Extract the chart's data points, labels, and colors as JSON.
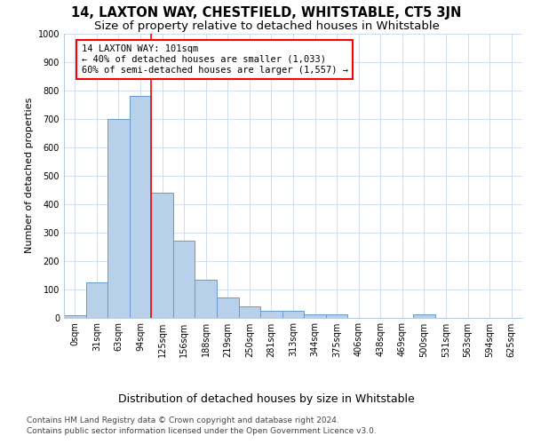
{
  "title": "14, LAXTON WAY, CHESTFIELD, WHITSTABLE, CT5 3JN",
  "subtitle": "Size of property relative to detached houses in Whitstable",
  "xlabel": "Distribution of detached houses by size in Whitstable",
  "ylabel": "Number of detached properties",
  "categories": [
    "0sqm",
    "31sqm",
    "63sqm",
    "94sqm",
    "125sqm",
    "156sqm",
    "188sqm",
    "219sqm",
    "250sqm",
    "281sqm",
    "313sqm",
    "344sqm",
    "375sqm",
    "406sqm",
    "438sqm",
    "469sqm",
    "500sqm",
    "531sqm",
    "563sqm",
    "594sqm",
    "625sqm"
  ],
  "values": [
    8,
    125,
    700,
    780,
    440,
    270,
    132,
    70,
    40,
    25,
    25,
    12,
    12,
    0,
    0,
    0,
    10,
    0,
    0,
    0,
    0
  ],
  "bar_color": "#b8d0ea",
  "bar_edgecolor": "#6699cc",
  "vline_x": 3.5,
  "vline_color": "red",
  "annotation_line1": "14 LAXTON WAY: 101sqm",
  "annotation_line2": "← 40% of detached houses are smaller (1,033)",
  "annotation_line3": "60% of semi-detached houses are larger (1,557) →",
  "ylim": [
    0,
    1000
  ],
  "footer_line1": "Contains HM Land Registry data © Crown copyright and database right 2024.",
  "footer_line2": "Contains public sector information licensed under the Open Government Licence v3.0.",
  "background_color": "#ffffff",
  "grid_color": "#c8d8ec",
  "title_fontsize": 10.5,
  "subtitle_fontsize": 9.5,
  "xlabel_fontsize": 9,
  "ylabel_fontsize": 8,
  "tick_fontsize": 7,
  "annotation_fontsize": 7.5,
  "footer_fontsize": 6.5
}
